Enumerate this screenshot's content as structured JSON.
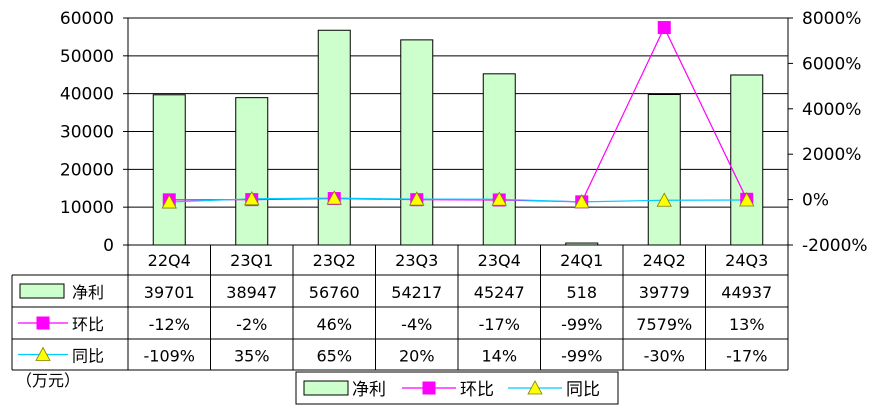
{
  "chart_data": {
    "type": "bar",
    "categories": [
      "22Q4",
      "23Q1",
      "23Q2",
      "23Q3",
      "23Q4",
      "24Q1",
      "24Q2",
      "24Q3"
    ],
    "series": [
      {
        "name": "净利",
        "type": "bar",
        "axis": "left",
        "values": [
          39701,
          38947,
          56760,
          54217,
          45247,
          518,
          39779,
          44937
        ],
        "labels": [
          "39701",
          "38947",
          "56760",
          "54217",
          "45247",
          "518",
          "39779",
          "44937"
        ],
        "color": "#ccffcc"
      },
      {
        "name": "环比",
        "type": "line",
        "axis": "right",
        "marker": "square",
        "values": [
          -12,
          -2,
          46,
          -4,
          -17,
          -99,
          7579,
          13
        ],
        "labels": [
          "-12%",
          "-2%",
          "46%",
          "-4%",
          "-17%",
          "-99%",
          "7579%",
          "13%"
        ],
        "color": "#ff00ff"
      },
      {
        "name": "同比",
        "type": "line",
        "axis": "right",
        "marker": "triangle",
        "values": [
          -109,
          35,
          65,
          20,
          14,
          -99,
          -30,
          -17
        ],
        "labels": [
          "-109%",
          "35%",
          "65%",
          "20%",
          "14%",
          "-99%",
          "-30%",
          "-17%"
        ],
        "color": "#00ccff",
        "marker_color": "#ffff00"
      }
    ],
    "left_axis": {
      "ylim": [
        0,
        60000
      ],
      "ticks": [
        "0",
        "10000",
        "20000",
        "30000",
        "40000",
        "50000",
        "60000"
      ]
    },
    "right_axis": {
      "ylim": [
        -2000,
        8000
      ],
      "ticks": [
        "-2000%",
        "0%",
        "2000%",
        "4000%",
        "6000%",
        "8000%"
      ]
    },
    "unit_label": "（万元）",
    "legend_position": "bottom",
    "grid": true
  }
}
